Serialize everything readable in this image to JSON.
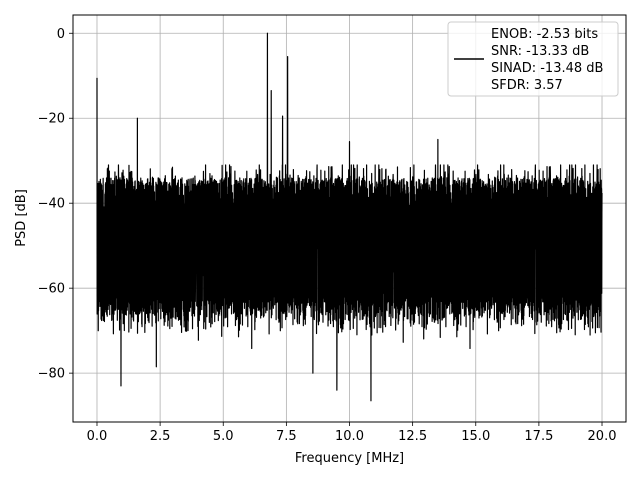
{
  "chart_data": {
    "type": "line",
    "xlabel": "Frequency [MHz]",
    "ylabel": "PSD [dB]",
    "xlim": [
      -0.95,
      20.95
    ],
    "ylim": [
      -91.5,
      4.3
    ],
    "xticks": [
      0.0,
      2.5,
      5.0,
      7.5,
      10.0,
      12.5,
      15.0,
      17.5,
      20.0
    ],
    "xtick_labels": [
      "0.0",
      "2.5",
      "5.0",
      "7.5",
      "10.0",
      "12.5",
      "15.0",
      "17.5",
      "20.0"
    ],
    "yticks": [
      0,
      -20,
      -40,
      -60,
      -80
    ],
    "ytick_labels": [
      "0",
      "−20",
      "−40",
      "−60",
      "−80"
    ],
    "grid": true,
    "legend_position": "upper right",
    "series": [
      {
        "name": "",
        "color": "#000000",
        "noise_floor_envelope": {
          "x_range": [
            0,
            20
          ],
          "upper_db": -32,
          "lower_db": -70,
          "median_db": -46
        },
        "peaks": [
          {
            "x": 0.0,
            "y": -10.5
          },
          {
            "x": 1.6,
            "y": -20.0
          },
          {
            "x": 6.75,
            "y": 0.0
          },
          {
            "x": 6.9,
            "y": -13.5
          },
          {
            "x": 7.35,
            "y": -19.5
          },
          {
            "x": 7.55,
            "y": -5.5
          },
          {
            "x": 10.0,
            "y": -25.5
          },
          {
            "x": 13.5,
            "y": -25.0
          }
        ],
        "dips": [
          {
            "x": 0.95,
            "y": -83.0
          },
          {
            "x": 2.35,
            "y": -78.5
          },
          {
            "x": 8.55,
            "y": -80.0
          },
          {
            "x": 9.5,
            "y": -84.0
          },
          {
            "x": 10.85,
            "y": -86.5
          }
        ]
      }
    ],
    "legend": [
      "ENOB: -2.53 bits",
      "SNR: -13.33 dB",
      "SINAD: -13.48 dB",
      "SFDR: 3.57"
    ]
  }
}
